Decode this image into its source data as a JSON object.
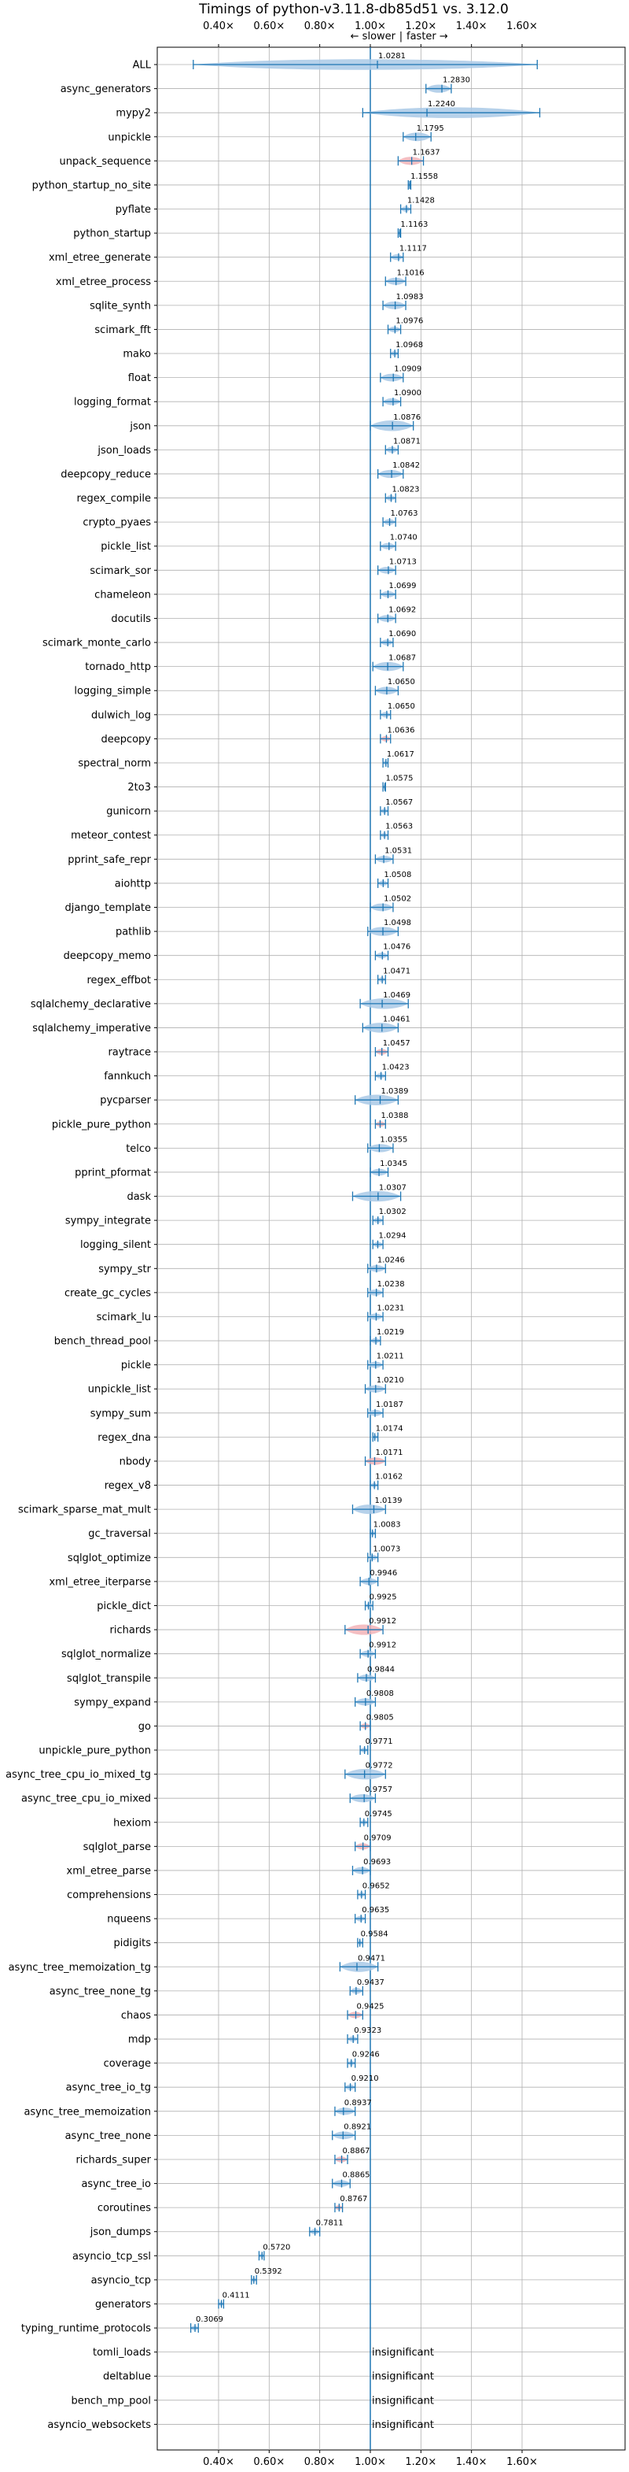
{
  "chart_data": {
    "type": "violin",
    "title": "Timings of python-v3.11.8-db85d51 vs. 3.12.0",
    "direction_left": "← slower",
    "direction_sep": "|",
    "direction_right": "faster →",
    "xlim": [
      0.2,
      1.75
    ],
    "xticks": [
      0.4,
      0.6,
      0.8,
      1.0,
      1.2,
      1.4,
      1.6
    ],
    "xtick_labels": [
      "0.40×",
      "0.60×",
      "0.80×",
      "1.00×",
      "1.20×",
      "1.40×",
      "1.60×"
    ],
    "reference_line": 1.0,
    "grid": true,
    "colors": {
      "faster": "#1f77b4",
      "slower": "#e8848c",
      "violin": "#a9c9e6",
      "violin_slower": "#f2b3b7"
    },
    "insignificant_label": "insignificant",
    "benchmarks": [
      {
        "name": "ALL",
        "value": 1.0281,
        "label": "1.0281",
        "lo": 0.3,
        "hi": 1.66,
        "slower": false
      },
      {
        "name": "async_generators",
        "value": 1.283,
        "label": "1.2830",
        "lo": 1.22,
        "hi": 1.32,
        "slower": false
      },
      {
        "name": "mypy2",
        "value": 1.224,
        "label": "1.2240",
        "lo": 0.97,
        "hi": 1.67,
        "slower": false
      },
      {
        "name": "unpickle",
        "value": 1.1795,
        "label": "1.1795",
        "lo": 1.13,
        "hi": 1.24,
        "slower": false
      },
      {
        "name": "unpack_sequence",
        "value": 1.1637,
        "label": "1.1637",
        "lo": 1.11,
        "hi": 1.21,
        "slower": true
      },
      {
        "name": "python_startup_no_site",
        "value": 1.1558,
        "label": "1.1558",
        "lo": 1.15,
        "hi": 1.16,
        "slower": false
      },
      {
        "name": "pyflate",
        "value": 1.1428,
        "label": "1.1428",
        "lo": 1.12,
        "hi": 1.16,
        "slower": false
      },
      {
        "name": "python_startup",
        "value": 1.1163,
        "label": "1.1163",
        "lo": 1.11,
        "hi": 1.12,
        "slower": false
      },
      {
        "name": "xml_etree_generate",
        "value": 1.1117,
        "label": "1.1117",
        "lo": 1.08,
        "hi": 1.13,
        "slower": false
      },
      {
        "name": "xml_etree_process",
        "value": 1.1016,
        "label": "1.1016",
        "lo": 1.06,
        "hi": 1.14,
        "slower": false
      },
      {
        "name": "sqlite_synth",
        "value": 1.0983,
        "label": "1.0983",
        "lo": 1.05,
        "hi": 1.14,
        "slower": false
      },
      {
        "name": "scimark_fft",
        "value": 1.0976,
        "label": "1.0976",
        "lo": 1.07,
        "hi": 1.12,
        "slower": false
      },
      {
        "name": "mako",
        "value": 1.0968,
        "label": "1.0968",
        "lo": 1.08,
        "hi": 1.11,
        "slower": false
      },
      {
        "name": "float",
        "value": 1.0909,
        "label": "1.0909",
        "lo": 1.04,
        "hi": 1.13,
        "slower": false
      },
      {
        "name": "logging_format",
        "value": 1.09,
        "label": "1.0900",
        "lo": 1.05,
        "hi": 1.12,
        "slower": false
      },
      {
        "name": "json",
        "value": 1.0876,
        "label": "1.0876",
        "lo": 1.0,
        "hi": 1.17,
        "slower": false
      },
      {
        "name": "json_loads",
        "value": 1.0871,
        "label": "1.0871",
        "lo": 1.06,
        "hi": 1.11,
        "slower": false
      },
      {
        "name": "deepcopy_reduce",
        "value": 1.0842,
        "label": "1.0842",
        "lo": 1.03,
        "hi": 1.13,
        "slower": false
      },
      {
        "name": "regex_compile",
        "value": 1.0823,
        "label": "1.0823",
        "lo": 1.06,
        "hi": 1.1,
        "slower": false
      },
      {
        "name": "crypto_pyaes",
        "value": 1.0763,
        "label": "1.0763",
        "lo": 1.05,
        "hi": 1.1,
        "slower": false
      },
      {
        "name": "pickle_list",
        "value": 1.074,
        "label": "1.0740",
        "lo": 1.04,
        "hi": 1.1,
        "slower": false
      },
      {
        "name": "scimark_sor",
        "value": 1.0713,
        "label": "1.0713",
        "lo": 1.03,
        "hi": 1.1,
        "slower": false
      },
      {
        "name": "chameleon",
        "value": 1.0699,
        "label": "1.0699",
        "lo": 1.04,
        "hi": 1.1,
        "slower": false
      },
      {
        "name": "docutils",
        "value": 1.0692,
        "label": "1.0692",
        "lo": 1.03,
        "hi": 1.1,
        "slower": false
      },
      {
        "name": "scimark_monte_carlo",
        "value": 1.069,
        "label": "1.0690",
        "lo": 1.04,
        "hi": 1.09,
        "slower": false
      },
      {
        "name": "tornado_http",
        "value": 1.0687,
        "label": "1.0687",
        "lo": 1.01,
        "hi": 1.13,
        "slower": false
      },
      {
        "name": "logging_simple",
        "value": 1.065,
        "label": "1.0650",
        "lo": 1.02,
        "hi": 1.11,
        "slower": false
      },
      {
        "name": "dulwich_log",
        "value": 1.065,
        "label": "1.0650",
        "lo": 1.04,
        "hi": 1.08,
        "slower": false
      },
      {
        "name": "deepcopy",
        "value": 1.0636,
        "label": "1.0636",
        "lo": 1.04,
        "hi": 1.08,
        "slower": true
      },
      {
        "name": "spectral_norm",
        "value": 1.0617,
        "label": "1.0617",
        "lo": 1.05,
        "hi": 1.07,
        "slower": false
      },
      {
        "name": "2to3",
        "value": 1.0575,
        "label": "1.0575",
        "lo": 1.05,
        "hi": 1.06,
        "slower": false
      },
      {
        "name": "gunicorn",
        "value": 1.0567,
        "label": "1.0567",
        "lo": 1.04,
        "hi": 1.07,
        "slower": false
      },
      {
        "name": "meteor_contest",
        "value": 1.0563,
        "label": "1.0563",
        "lo": 1.04,
        "hi": 1.07,
        "slower": false
      },
      {
        "name": "pprint_safe_repr",
        "value": 1.0531,
        "label": "1.0531",
        "lo": 1.02,
        "hi": 1.09,
        "slower": false
      },
      {
        "name": "aiohttp",
        "value": 1.0508,
        "label": "1.0508",
        "lo": 1.03,
        "hi": 1.07,
        "slower": false
      },
      {
        "name": "django_template",
        "value": 1.0502,
        "label": "1.0502",
        "lo": 1.0,
        "hi": 1.09,
        "slower": false
      },
      {
        "name": "pathlib",
        "value": 1.0498,
        "label": "1.0498",
        "lo": 0.99,
        "hi": 1.11,
        "slower": false
      },
      {
        "name": "deepcopy_memo",
        "value": 1.0476,
        "label": "1.0476",
        "lo": 1.02,
        "hi": 1.07,
        "slower": false
      },
      {
        "name": "regex_effbot",
        "value": 1.0471,
        "label": "1.0471",
        "lo": 1.03,
        "hi": 1.06,
        "slower": false
      },
      {
        "name": "sqlalchemy_declarative",
        "value": 1.0469,
        "label": "1.0469",
        "lo": 0.96,
        "hi": 1.15,
        "slower": false
      },
      {
        "name": "sqlalchemy_imperative",
        "value": 1.0461,
        "label": "1.0461",
        "lo": 0.97,
        "hi": 1.11,
        "slower": false
      },
      {
        "name": "raytrace",
        "value": 1.0457,
        "label": "1.0457",
        "lo": 1.02,
        "hi": 1.07,
        "slower": true
      },
      {
        "name": "fannkuch",
        "value": 1.0423,
        "label": "1.0423",
        "lo": 1.02,
        "hi": 1.06,
        "slower": false
      },
      {
        "name": "pycparser",
        "value": 1.0389,
        "label": "1.0389",
        "lo": 0.94,
        "hi": 1.11,
        "slower": false
      },
      {
        "name": "pickle_pure_python",
        "value": 1.0388,
        "label": "1.0388",
        "lo": 1.02,
        "hi": 1.06,
        "slower": true
      },
      {
        "name": "telco",
        "value": 1.0355,
        "label": "1.0355",
        "lo": 0.99,
        "hi": 1.09,
        "slower": false
      },
      {
        "name": "pprint_pformat",
        "value": 1.0345,
        "label": "1.0345",
        "lo": 1.0,
        "hi": 1.07,
        "slower": false
      },
      {
        "name": "dask",
        "value": 1.0307,
        "label": "1.0307",
        "lo": 0.93,
        "hi": 1.12,
        "slower": false
      },
      {
        "name": "sympy_integrate",
        "value": 1.0302,
        "label": "1.0302",
        "lo": 1.01,
        "hi": 1.05,
        "slower": false
      },
      {
        "name": "logging_silent",
        "value": 1.0294,
        "label": "1.0294",
        "lo": 1.01,
        "hi": 1.05,
        "slower": false
      },
      {
        "name": "sympy_str",
        "value": 1.0246,
        "label": "1.0246",
        "lo": 0.99,
        "hi": 1.06,
        "slower": false
      },
      {
        "name": "create_gc_cycles",
        "value": 1.0238,
        "label": "1.0238",
        "lo": 0.99,
        "hi": 1.05,
        "slower": false
      },
      {
        "name": "scimark_lu",
        "value": 1.0231,
        "label": "1.0231",
        "lo": 0.99,
        "hi": 1.05,
        "slower": false
      },
      {
        "name": "bench_thread_pool",
        "value": 1.0219,
        "label": "1.0219",
        "lo": 1.0,
        "hi": 1.04,
        "slower": false
      },
      {
        "name": "pickle",
        "value": 1.0211,
        "label": "1.0211",
        "lo": 0.99,
        "hi": 1.05,
        "slower": false
      },
      {
        "name": "unpickle_list",
        "value": 1.021,
        "label": "1.0210",
        "lo": 0.98,
        "hi": 1.06,
        "slower": false
      },
      {
        "name": "sympy_sum",
        "value": 1.0187,
        "label": "1.0187",
        "lo": 0.99,
        "hi": 1.05,
        "slower": false
      },
      {
        "name": "regex_dna",
        "value": 1.0174,
        "label": "1.0174",
        "lo": 1.01,
        "hi": 1.03,
        "slower": false
      },
      {
        "name": "nbody",
        "value": 1.0171,
        "label": "1.0171",
        "lo": 0.98,
        "hi": 1.06,
        "slower": true
      },
      {
        "name": "regex_v8",
        "value": 1.0162,
        "label": "1.0162",
        "lo": 1.0,
        "hi": 1.03,
        "slower": false
      },
      {
        "name": "scimark_sparse_mat_mult",
        "value": 1.0139,
        "label": "1.0139",
        "lo": 0.93,
        "hi": 1.06,
        "slower": false
      },
      {
        "name": "gc_traversal",
        "value": 1.0083,
        "label": "1.0083",
        "lo": 1.0,
        "hi": 1.02,
        "slower": false
      },
      {
        "name": "sqlglot_optimize",
        "value": 1.0073,
        "label": "1.0073",
        "lo": 0.99,
        "hi": 1.03,
        "slower": false
      },
      {
        "name": "xml_etree_iterparse",
        "value": 0.9946,
        "label": "0.9946",
        "lo": 0.96,
        "hi": 1.03,
        "slower": false
      },
      {
        "name": "pickle_dict",
        "value": 0.9925,
        "label": "0.9925",
        "lo": 0.98,
        "hi": 1.01,
        "slower": false
      },
      {
        "name": "richards",
        "value": 0.9912,
        "label": "0.9912",
        "lo": 0.9,
        "hi": 1.05,
        "slower": true
      },
      {
        "name": "sqlglot_normalize",
        "value": 0.9912,
        "label": "0.9912",
        "lo": 0.96,
        "hi": 1.02,
        "slower": false
      },
      {
        "name": "sqlglot_transpile",
        "value": 0.9844,
        "label": "0.9844",
        "lo": 0.95,
        "hi": 1.02,
        "slower": false
      },
      {
        "name": "sympy_expand",
        "value": 0.9808,
        "label": "0.9808",
        "lo": 0.94,
        "hi": 1.02,
        "slower": false
      },
      {
        "name": "go",
        "value": 0.9805,
        "label": "0.9805",
        "lo": 0.96,
        "hi": 1.0,
        "slower": true
      },
      {
        "name": "unpickle_pure_python",
        "value": 0.9771,
        "label": "0.9771",
        "lo": 0.96,
        "hi": 0.99,
        "slower": false
      },
      {
        "name": "async_tree_cpu_io_mixed_tg",
        "value": 0.9772,
        "label": "0.9772",
        "lo": 0.9,
        "hi": 1.06,
        "slower": false
      },
      {
        "name": "async_tree_cpu_io_mixed",
        "value": 0.9757,
        "label": "0.9757",
        "lo": 0.92,
        "hi": 1.02,
        "slower": false
      },
      {
        "name": "hexiom",
        "value": 0.9745,
        "label": "0.9745",
        "lo": 0.96,
        "hi": 0.99,
        "slower": false
      },
      {
        "name": "sqlglot_parse",
        "value": 0.9709,
        "label": "0.9709",
        "lo": 0.94,
        "hi": 1.0,
        "slower": true
      },
      {
        "name": "xml_etree_parse",
        "value": 0.9693,
        "label": "0.9693",
        "lo": 0.93,
        "hi": 1.0,
        "slower": false
      },
      {
        "name": "comprehensions",
        "value": 0.9652,
        "label": "0.9652",
        "lo": 0.95,
        "hi": 0.98,
        "slower": false
      },
      {
        "name": "nqueens",
        "value": 0.9635,
        "label": "0.9635",
        "lo": 0.94,
        "hi": 0.98,
        "slower": false
      },
      {
        "name": "pidigits",
        "value": 0.9584,
        "label": "0.9584",
        "lo": 0.95,
        "hi": 0.97,
        "slower": false
      },
      {
        "name": "async_tree_memoization_tg",
        "value": 0.9471,
        "label": "0.9471",
        "lo": 0.88,
        "hi": 1.03,
        "slower": false
      },
      {
        "name": "async_tree_none_tg",
        "value": 0.9437,
        "label": "0.9437",
        "lo": 0.92,
        "hi": 0.97,
        "slower": false
      },
      {
        "name": "chaos",
        "value": 0.9425,
        "label": "0.9425",
        "lo": 0.91,
        "hi": 0.97,
        "slower": true
      },
      {
        "name": "mdp",
        "value": 0.9323,
        "label": "0.9323",
        "lo": 0.91,
        "hi": 0.95,
        "slower": false
      },
      {
        "name": "coverage",
        "value": 0.9246,
        "label": "0.9246",
        "lo": 0.91,
        "hi": 0.94,
        "slower": false
      },
      {
        "name": "async_tree_io_tg",
        "value": 0.921,
        "label": "0.9210",
        "lo": 0.9,
        "hi": 0.94,
        "slower": false
      },
      {
        "name": "async_tree_memoization",
        "value": 0.8937,
        "label": "0.8937",
        "lo": 0.86,
        "hi": 0.94,
        "slower": false
      },
      {
        "name": "async_tree_none",
        "value": 0.8921,
        "label": "0.8921",
        "lo": 0.85,
        "hi": 0.94,
        "slower": false
      },
      {
        "name": "richards_super",
        "value": 0.8867,
        "label": "0.8867",
        "lo": 0.86,
        "hi": 0.91,
        "slower": true
      },
      {
        "name": "async_tree_io",
        "value": 0.8865,
        "label": "0.8865",
        "lo": 0.85,
        "hi": 0.92,
        "slower": false
      },
      {
        "name": "coroutines",
        "value": 0.8767,
        "label": "0.8767",
        "lo": 0.86,
        "hi": 0.89,
        "slower": true
      },
      {
        "name": "json_dumps",
        "value": 0.7811,
        "label": "0.7811",
        "lo": 0.76,
        "hi": 0.8,
        "slower": false
      },
      {
        "name": "asyncio_tcp_ssl",
        "value": 0.572,
        "label": "0.5720",
        "lo": 0.56,
        "hi": 0.58,
        "slower": false
      },
      {
        "name": "asyncio_tcp",
        "value": 0.5392,
        "label": "0.5392",
        "lo": 0.53,
        "hi": 0.55,
        "slower": false
      },
      {
        "name": "generators",
        "value": 0.4111,
        "label": "0.4111",
        "lo": 0.4,
        "hi": 0.42,
        "slower": false
      },
      {
        "name": "typing_runtime_protocols",
        "value": 0.3069,
        "label": "0.3069",
        "lo": 0.29,
        "hi": 0.32,
        "slower": false
      },
      {
        "name": "tomli_loads",
        "value": null,
        "label": null,
        "insignificant": true
      },
      {
        "name": "deltablue",
        "value": null,
        "label": null,
        "insignificant": true
      },
      {
        "name": "bench_mp_pool",
        "value": null,
        "label": null,
        "insignificant": true
      },
      {
        "name": "asyncio_websockets",
        "value": null,
        "label": null,
        "insignificant": true
      }
    ]
  }
}
